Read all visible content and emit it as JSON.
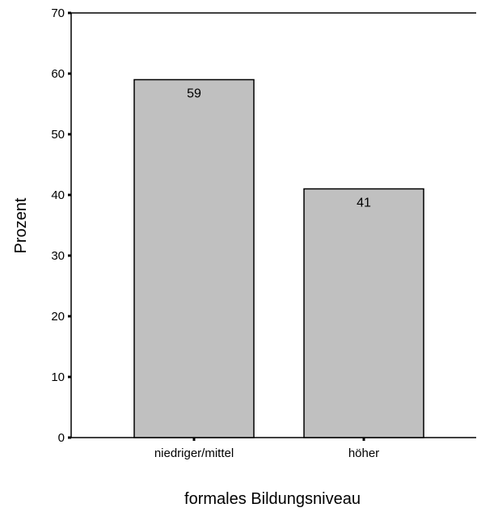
{
  "chart_data": {
    "type": "bar",
    "categories": [
      "niedriger/mittel",
      "höher"
    ],
    "values": [
      59,
      41
    ],
    "data_labels": [
      "59",
      "41"
    ],
    "xlabel": "formales Bildungsniveau",
    "ylabel": "Prozent",
    "ylim": [
      0,
      70
    ],
    "yticks": [
      0,
      10,
      20,
      30,
      40,
      50,
      60,
      70
    ],
    "ytick_labels": [
      "0",
      "10",
      "20",
      "30",
      "40",
      "50",
      "60",
      "70"
    ],
    "grid": false,
    "legend": "none",
    "bar_color": "#c0c0c0",
    "bar_edge_color": "#000000"
  }
}
